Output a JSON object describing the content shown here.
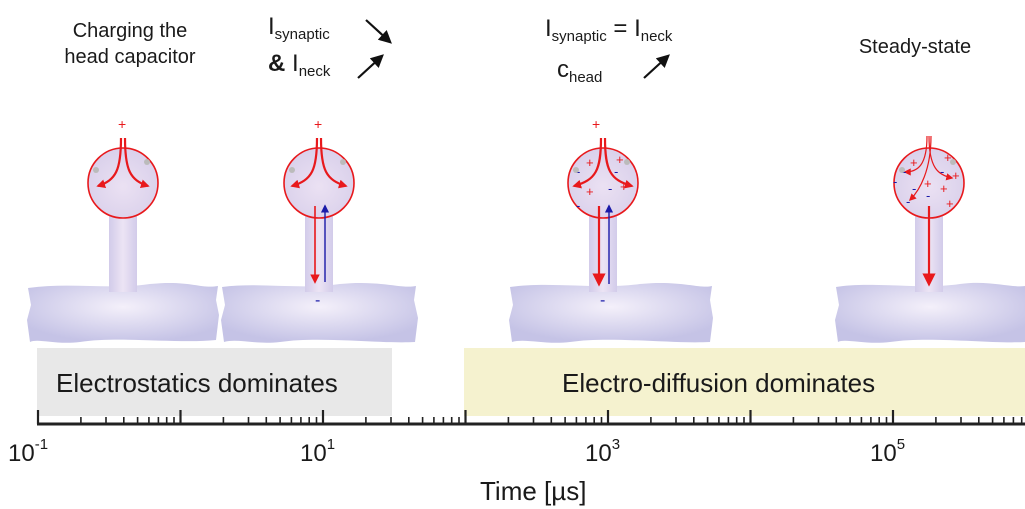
{
  "panels": [
    {
      "line1": "Charging the",
      "line2": "head capacitor"
    },
    {
      "i_synaptic_I": "I",
      "i_synaptic_sub": "synaptic",
      "amp": "&",
      "i_neck_I": "I",
      "i_neck_sub": "neck"
    },
    {
      "i_synaptic_I": "I",
      "i_synaptic_sub": "synaptic",
      "equals": "=",
      "i_neck_I": "I",
      "i_neck_sub": "neck",
      "c_head_c": "c",
      "c_head_sub": "head"
    },
    {
      "label": "Steady-state"
    }
  ],
  "regions": {
    "electrostatics": "Electrostatics dominates",
    "electrodiffusion": "Electro-diffusion dominates"
  },
  "axis": {
    "label": "Time [µs]",
    "ticks": [
      {
        "base": "10",
        "exp": "-1"
      },
      {
        "base": "10",
        "exp": "1"
      },
      {
        "base": "10",
        "exp": "3"
      },
      {
        "base": "10",
        "exp": "5"
      }
    ]
  },
  "charges": {
    "plus": "+",
    "minus": "-"
  },
  "colors": {
    "current_red": "#e8191c",
    "ion_blue": "#1a1aa8",
    "dendrite": "#c8c6e6",
    "electrostatics_bg": "#e8e8e8",
    "electrodiffusion_bg": "#f5f2cf"
  }
}
